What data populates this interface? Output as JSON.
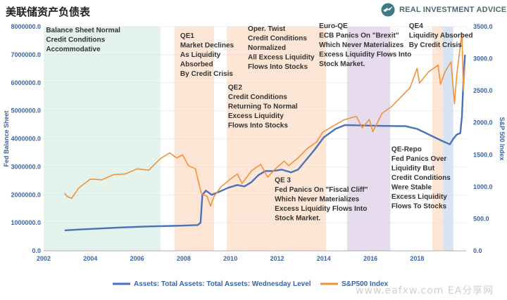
{
  "header": {
    "title": "美联储资产负债表",
    "brand": "REAL INVESTMENT ADVICE"
  },
  "watermark": "www.eafxw.com  EA分享网",
  "colors": {
    "assets": "#4a72b8",
    "spx": "#f0923c",
    "green_band": "#e4f3ec",
    "orange_band": "#fde6d6",
    "purple_band": "#e6dcee",
    "blue_band": "#d8e4f3"
  },
  "chart_data": {
    "type": "line",
    "xlim": [
      2002,
      2019.9
    ],
    "x_ticks": [
      "2002",
      "2004",
      "2006",
      "2008",
      "2010",
      "2012",
      "2014",
      "2016",
      "2018"
    ],
    "y_left": {
      "label": "Fed Balance Sheet",
      "lim": [
        0,
        8000000
      ],
      "ticks": [
        "0.0",
        "1000000.0",
        "2000000.0",
        "3000000.0",
        "4000000.0",
        "5000000.0",
        "6000000.0",
        "7000000.0",
        "8000000.0"
      ]
    },
    "y_right": {
      "label": "S&P 500 Index",
      "lim": [
        0,
        3500
      ],
      "ticks": [
        "0.0",
        "500.0",
        "1000.0",
        "1500.0",
        "2000.0",
        "2500.0",
        "3000.0",
        "3500.0"
      ]
    },
    "grid": true,
    "legend_position": "bottom",
    "series": [
      {
        "name": "Assets: Total Assets: Total Assets: Wednesday Level",
        "axis": "left",
        "points": [
          [
            2002.9,
            730000
          ],
          [
            2003.5,
            760000
          ],
          [
            2004.5,
            800000
          ],
          [
            2005.5,
            840000
          ],
          [
            2006.5,
            870000
          ],
          [
            2007.5,
            890000
          ],
          [
            2008.0,
            900000
          ],
          [
            2008.6,
            920000
          ],
          [
            2008.72,
            1000000
          ],
          [
            2008.8,
            2000000
          ],
          [
            2008.95,
            2150000
          ],
          [
            2009.2,
            2000000
          ],
          [
            2009.5,
            2100000
          ],
          [
            2009.9,
            2250000
          ],
          [
            2010.3,
            2350000
          ],
          [
            2010.6,
            2300000
          ],
          [
            2010.9,
            2450000
          ],
          [
            2011.2,
            2700000
          ],
          [
            2011.5,
            2850000
          ],
          [
            2011.8,
            2850000
          ],
          [
            2012.2,
            2900000
          ],
          [
            2012.6,
            2800000
          ],
          [
            2012.9,
            2900000
          ],
          [
            2013.2,
            3200000
          ],
          [
            2013.6,
            3600000
          ],
          [
            2014.0,
            4050000
          ],
          [
            2014.5,
            4350000
          ],
          [
            2014.9,
            4490000
          ],
          [
            2015.5,
            4480000
          ],
          [
            2016.5,
            4460000
          ],
          [
            2017.5,
            4450000
          ],
          [
            2018.0,
            4350000
          ],
          [
            2018.5,
            4150000
          ],
          [
            2019.0,
            3950000
          ],
          [
            2019.4,
            3800000
          ],
          [
            2019.55,
            4000000
          ],
          [
            2019.7,
            4150000
          ],
          [
            2019.85,
            4200000
          ],
          [
            2019.92,
            4800000
          ],
          [
            2019.98,
            6000000
          ],
          [
            2020.05,
            7000000
          ]
        ]
      },
      {
        "name": "S&P500 Index",
        "axis": "right",
        "points": [
          [
            2002.9,
            900
          ],
          [
            2003.0,
            850
          ],
          [
            2003.2,
            820
          ],
          [
            2003.5,
            980
          ],
          [
            2004.0,
            1120
          ],
          [
            2004.5,
            1110
          ],
          [
            2005.0,
            1190
          ],
          [
            2005.5,
            1200
          ],
          [
            2006.0,
            1280
          ],
          [
            2006.5,
            1260
          ],
          [
            2007.0,
            1440
          ],
          [
            2007.4,
            1530
          ],
          [
            2007.7,
            1450
          ],
          [
            2007.95,
            1500
          ],
          [
            2008.2,
            1330
          ],
          [
            2008.5,
            1280
          ],
          [
            2008.75,
            900
          ],
          [
            2009.0,
            850
          ],
          [
            2009.15,
            700
          ],
          [
            2009.3,
            850
          ],
          [
            2009.6,
            1000
          ],
          [
            2010.0,
            1120
          ],
          [
            2010.3,
            1200
          ],
          [
            2010.5,
            1050
          ],
          [
            2010.9,
            1250
          ],
          [
            2011.3,
            1350
          ],
          [
            2011.6,
            1150
          ],
          [
            2011.9,
            1270
          ],
          [
            2012.3,
            1400
          ],
          [
            2012.5,
            1330
          ],
          [
            2012.9,
            1450
          ],
          [
            2013.3,
            1600
          ],
          [
            2013.7,
            1700
          ],
          [
            2013.95,
            1850
          ],
          [
            2014.4,
            1950
          ],
          [
            2014.9,
            2050
          ],
          [
            2015.4,
            2100
          ],
          [
            2015.65,
            1920
          ],
          [
            2015.95,
            2050
          ],
          [
            2016.1,
            1860
          ],
          [
            2016.5,
            2150
          ],
          [
            2016.9,
            2250
          ],
          [
            2017.3,
            2400
          ],
          [
            2017.7,
            2550
          ],
          [
            2018.0,
            2850
          ],
          [
            2018.1,
            2620
          ],
          [
            2018.5,
            2800
          ],
          [
            2018.9,
            2900
          ],
          [
            2019.0,
            2600
          ],
          [
            2019.2,
            2800
          ],
          [
            2019.45,
            2950
          ],
          [
            2019.6,
            2300
          ],
          [
            2019.7,
            2750
          ],
          [
            2019.85,
            3200
          ],
          [
            2019.92,
            3400
          ],
          [
            2019.98,
            2500
          ],
          [
            2020.05,
            2900
          ]
        ]
      }
    ],
    "bands": [
      {
        "from": 2002,
        "to": 2007,
        "color": "green"
      },
      {
        "from": 2007.6,
        "to": 2009.3,
        "color": "orange"
      },
      {
        "from": 2009.85,
        "to": 2010.7,
        "color": "orange"
      },
      {
        "from": 2010.7,
        "to": 2011.8,
        "color": "orange"
      },
      {
        "from": 2011.8,
        "to": 2014.1,
        "color": "orange"
      },
      {
        "from": 2015.0,
        "to": 2016.85,
        "color": "purple"
      },
      {
        "from": 2018.65,
        "to": 2019.1,
        "color": "orange"
      },
      {
        "from": 2019.1,
        "to": 2019.55,
        "color": "blue"
      }
    ],
    "annotations": [
      {
        "x": 2002.1,
        "y": 7800000,
        "lines": [
          "Balance Sheet Normal",
          "Credit Conditions",
          "Accommodative"
        ]
      },
      {
        "x": 2007.85,
        "y": 7600000,
        "lines": [
          "QE1",
          "Market Declines",
          "As Liquidity",
          "Absorbed",
          "By Credit Crisis"
        ]
      },
      {
        "x": 2010.75,
        "y": 7850000,
        "lines": [
          "Oper. Twist",
          "Credit Conditions",
          "Normalized",
          "All Excess Liquidity",
          "Flows Into Stocks"
        ]
      },
      {
        "x": 2009.9,
        "y": 5750000,
        "lines": [
          "QE2",
          "Credit Conditions",
          "Returning To Normal",
          "Excess Liquidity",
          "Flows Into Stocks"
        ]
      },
      {
        "x": 2011.9,
        "y": 2450000,
        "lines": [
          "QE 3",
          "Fed Panics On \"Fiscal Cliff\"",
          "Which Never Materializes",
          "Excess Liquidity Flows Into",
          "Stock Market."
        ]
      },
      {
        "x": 2013.8,
        "y": 7950000,
        "lines": [
          "Euro-QE",
          "ECB Panics On \"Brexit\"",
          "Which Never Materializes",
          "Excess Liquidity Flows Into",
          "Stock Market."
        ]
      },
      {
        "x": 2017.65,
        "y": 7950000,
        "lines": [
          "QE4",
          "Liquidity Absorbed",
          "By Credit Crisis"
        ]
      },
      {
        "x": 2016.9,
        "y": 3550000,
        "lines": [
          "QE-Repo",
          "Fed Panics Over",
          "Liquidity But",
          "Credit Conditions",
          "Were Stable",
          "Excess Liquidity",
          "Flows To Stocks"
        ]
      }
    ]
  }
}
